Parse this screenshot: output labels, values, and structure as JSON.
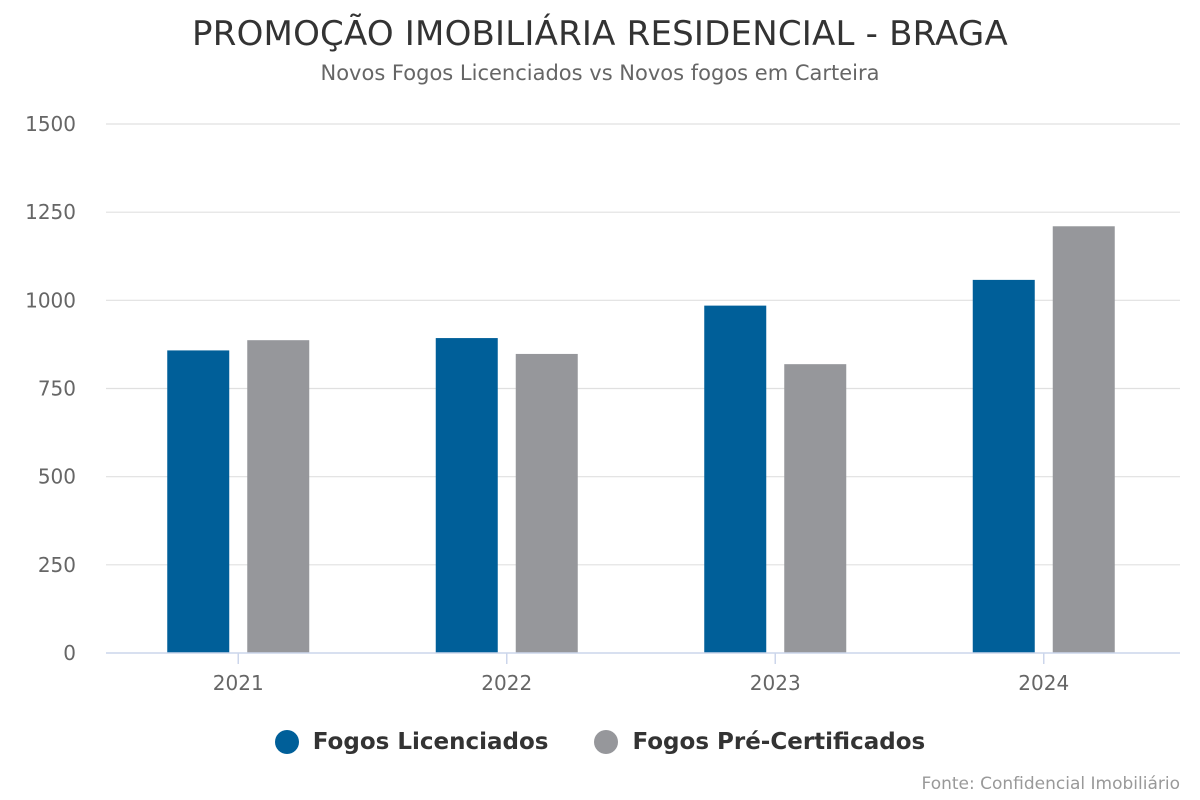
{
  "title": "PROMOÇÃO IMOBILIÁRIA RESIDENCIAL - BRAGA",
  "subtitle": "Novos Fogos Licenciados vs Novos fogos em Carteira",
  "source": "Fonte: Confidencial Imobiliário",
  "chart_data": {
    "type": "bar",
    "title": "PROMOÇÃO IMOBILIÁRIA RESIDENCIAL - BRAGA",
    "subtitle": "Novos Fogos Licenciados vs Novos fogos em Carteira",
    "xlabel": "",
    "ylabel": "",
    "categories": [
      "2021",
      "2022",
      "2023",
      "2024"
    ],
    "series": [
      {
        "name": "Fogos Licenciados",
        "color": "#005f99",
        "values": [
          858,
          893,
          985,
          1058
        ]
      },
      {
        "name": "Fogos Pré-Certificados",
        "color": "#96979b",
        "values": [
          887,
          848,
          819,
          1210
        ]
      }
    ],
    "ylim": [
      0,
      1500
    ],
    "yticks": [
      "0",
      "250",
      "500",
      "750",
      "1000",
      "1250",
      "1500"
    ],
    "grid": true,
    "legend_position": "bottom"
  }
}
